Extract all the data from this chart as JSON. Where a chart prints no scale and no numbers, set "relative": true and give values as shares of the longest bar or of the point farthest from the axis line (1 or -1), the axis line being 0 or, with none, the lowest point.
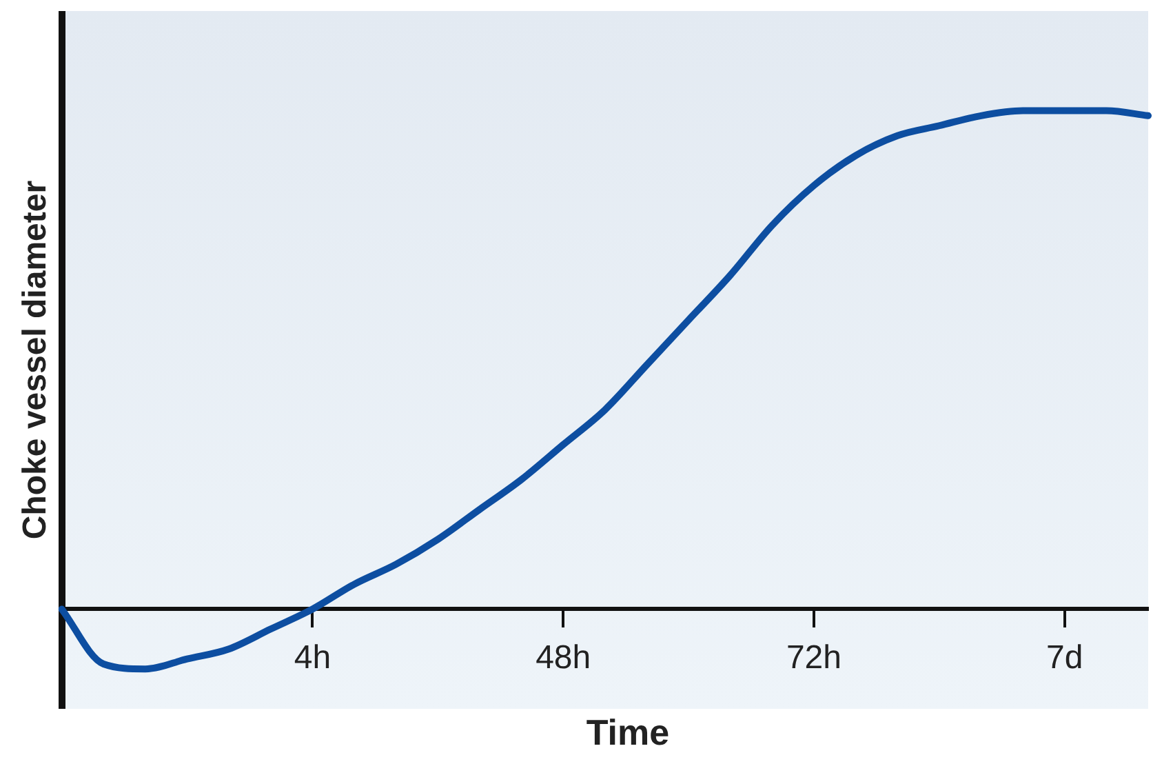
{
  "chart_data": {
    "type": "line",
    "relative": true,
    "xlabel": "Time",
    "ylabel": "Choke vessel diameter",
    "categories": [
      null,
      null,
      null,
      null,
      null,
      null,
      "4h",
      null,
      null,
      null,
      null,
      null,
      "48h",
      null,
      null,
      null,
      null,
      null,
      "72h",
      null,
      null,
      null,
      null,
      null,
      "7d",
      null,
      null
    ],
    "series": [
      {
        "color": "#0d4ea1",
        "values": [
          0,
          -0.11,
          -0.12,
          -0.1,
          -0.08,
          -0.04,
          0,
          0.05,
          0.09,
          0.14,
          0.2,
          0.26,
          0.33,
          0.4,
          0.49,
          0.58,
          0.67,
          0.77,
          0.85,
          0.91,
          0.95,
          0.97,
          0.99,
          1,
          1,
          1,
          0.99
        ]
      }
    ],
    "grid": false,
    "legend": false,
    "marker": "none",
    "line_style": "solid"
  }
}
